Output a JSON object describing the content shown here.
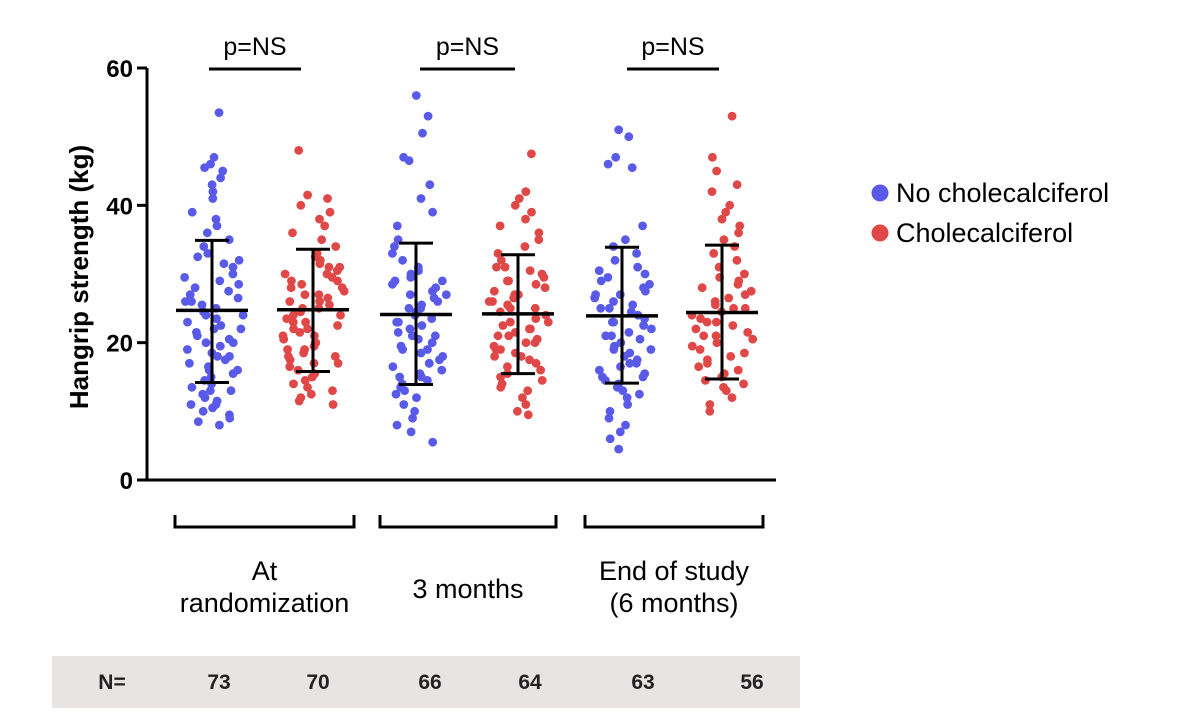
{
  "chart_data": {
    "type": "scatter",
    "ylabel": "Hangrip strength (kg)",
    "ylim": [
      0,
      60
    ],
    "yticks": [
      0,
      20,
      40,
      60
    ],
    "groups": [
      {
        "label_lines": [
          "At",
          "randomization"
        ],
        "p_text": "p=NS"
      },
      {
        "label_lines": [
          "3 months"
        ],
        "p_text": "p=NS"
      },
      {
        "label_lines": [
          "End of study",
          "(6 months)"
        ],
        "p_text": "p=NS"
      }
    ],
    "series_colors": {
      "No cholecalciferol": "#5a5ae8",
      "Cholecalciferol": "#e04848"
    },
    "legend": {
      "position": "right",
      "entries": [
        {
          "name": "No cholecalciferol",
          "color": "#5a5ae8"
        },
        {
          "name": "Cholecalciferol",
          "color": "#e04848"
        }
      ]
    },
    "n_label": "N=",
    "columns": [
      {
        "group": 0,
        "series": "No cholecalciferol",
        "n": 73,
        "mean": 24.7,
        "sd_low": 14.2,
        "sd_high": 34.9,
        "values": [
          53.5,
          47,
          46,
          45.5,
          45,
          44,
          43,
          42,
          41,
          39,
          38,
          37,
          36,
          35,
          34,
          33,
          32.5,
          32,
          31.5,
          31,
          30,
          29.5,
          29,
          28.5,
          28,
          27.5,
          27,
          26.5,
          26,
          25.5,
          25,
          24.5,
          24,
          23.5,
          23,
          22.5,
          22,
          21.5,
          21,
          20.5,
          20,
          19.5,
          19,
          18.5,
          18,
          17.5,
          17,
          16.5,
          16,
          15.5,
          15,
          14.5,
          14,
          13.5,
          13,
          12.5,
          12,
          11.5,
          11,
          10.5,
          10,
          9.5,
          9,
          8.5,
          8,
          26,
          24,
          22,
          20,
          18,
          16,
          13,
          11
        ]
      },
      {
        "group": 0,
        "series": "Cholecalciferol",
        "n": 70,
        "mean": 24.8,
        "sd_low": 15.8,
        "sd_high": 33.6,
        "values": [
          48,
          41.5,
          41,
          40,
          39,
          38,
          37,
          36,
          35,
          34,
          33,
          32.5,
          32,
          31.5,
          31,
          30.5,
          30,
          29.5,
          29,
          28.5,
          28,
          27.5,
          27,
          26.5,
          26,
          25.5,
          25,
          24.5,
          24,
          23.5,
          23,
          22.5,
          22,
          21.5,
          21,
          20.5,
          20,
          19.5,
          19,
          18.5,
          18,
          17.5,
          17,
          16.5,
          16,
          15.5,
          15,
          14.5,
          14,
          13.5,
          13,
          12.5,
          12,
          11.5,
          11,
          25,
          23,
          21,
          19,
          17,
          27,
          29,
          31,
          22,
          20,
          18,
          24,
          26,
          28,
          30
        ]
      },
      {
        "group": 1,
        "series": "No cholecalciferol",
        "n": 66,
        "mean": 24.1,
        "sd_low": 13.9,
        "sd_high": 34.5,
        "values": [
          56,
          53,
          50.5,
          47,
          46.5,
          43,
          41,
          39,
          37,
          35,
          34,
          33,
          32,
          31,
          30.5,
          30,
          29.5,
          29,
          28.5,
          28,
          27.5,
          27,
          26.5,
          26,
          25.5,
          25,
          24.5,
          24,
          23.5,
          23,
          22.5,
          22,
          21.5,
          21,
          20.5,
          20,
          19.5,
          19,
          18.5,
          18,
          17.5,
          17,
          16.5,
          16,
          15.5,
          15,
          14.5,
          14,
          13.5,
          13,
          12.5,
          12,
          11,
          10,
          9,
          8,
          7,
          5.5,
          25,
          23,
          21,
          19,
          27,
          29,
          17,
          15
        ]
      },
      {
        "group": 1,
        "series": "Cholecalciferol",
        "n": 64,
        "mean": 24.2,
        "sd_low": 15.5,
        "sd_high": 32.8,
        "values": [
          47.5,
          42,
          41,
          40,
          39,
          38,
          37,
          36,
          35,
          34,
          33,
          32,
          31,
          30.5,
          30,
          29.5,
          29,
          28.5,
          28,
          27.5,
          27,
          26.5,
          26,
          25.5,
          25,
          24.5,
          24,
          23.5,
          23,
          22.5,
          22,
          21.5,
          21,
          20.5,
          20,
          19.5,
          19,
          18.5,
          18,
          17.5,
          17,
          16.5,
          16,
          15.5,
          15,
          14.5,
          14,
          13.5,
          13,
          12,
          11,
          10,
          9.5,
          25,
          23,
          21,
          19,
          27,
          29,
          31,
          22,
          20,
          18,
          26
        ]
      },
      {
        "group": 2,
        "series": "No cholecalciferol",
        "n": 63,
        "mean": 23.9,
        "sd_low": 14.1,
        "sd_high": 33.9,
        "values": [
          51,
          50,
          47,
          46,
          45.5,
          37,
          35,
          34,
          33,
          32,
          31,
          30.5,
          30,
          29.5,
          29,
          28.5,
          28,
          27.5,
          27,
          26.5,
          26,
          25.5,
          25,
          24.5,
          24,
          23.5,
          23,
          22.5,
          22,
          21.5,
          21,
          20.5,
          20,
          19.5,
          19,
          18.5,
          18,
          17.5,
          17,
          16.5,
          16,
          15.5,
          15,
          14.5,
          14,
          13.5,
          13,
          12.5,
          12,
          11,
          10,
          9,
          8,
          7,
          6,
          4.5,
          25,
          23,
          21,
          19,
          27,
          17,
          15
        ]
      },
      {
        "group": 2,
        "series": "Cholecalciferol",
        "n": 56,
        "mean": 24.4,
        "sd_low": 14.7,
        "sd_high": 34.2,
        "values": [
          53,
          47,
          45,
          43,
          42,
          40,
          39,
          38,
          37,
          36,
          35,
          34,
          33,
          32,
          31,
          30,
          29.5,
          29,
          28.5,
          28,
          27.5,
          27,
          26.5,
          26,
          25.5,
          25,
          24.5,
          24,
          23.5,
          23,
          22.5,
          22,
          21.5,
          21,
          20.5,
          20,
          19.5,
          19,
          18.5,
          18,
          17.5,
          17,
          16.5,
          16,
          15.5,
          15,
          14.5,
          14,
          13.5,
          13,
          12,
          11,
          10,
          25,
          23,
          21
        ]
      }
    ]
  }
}
